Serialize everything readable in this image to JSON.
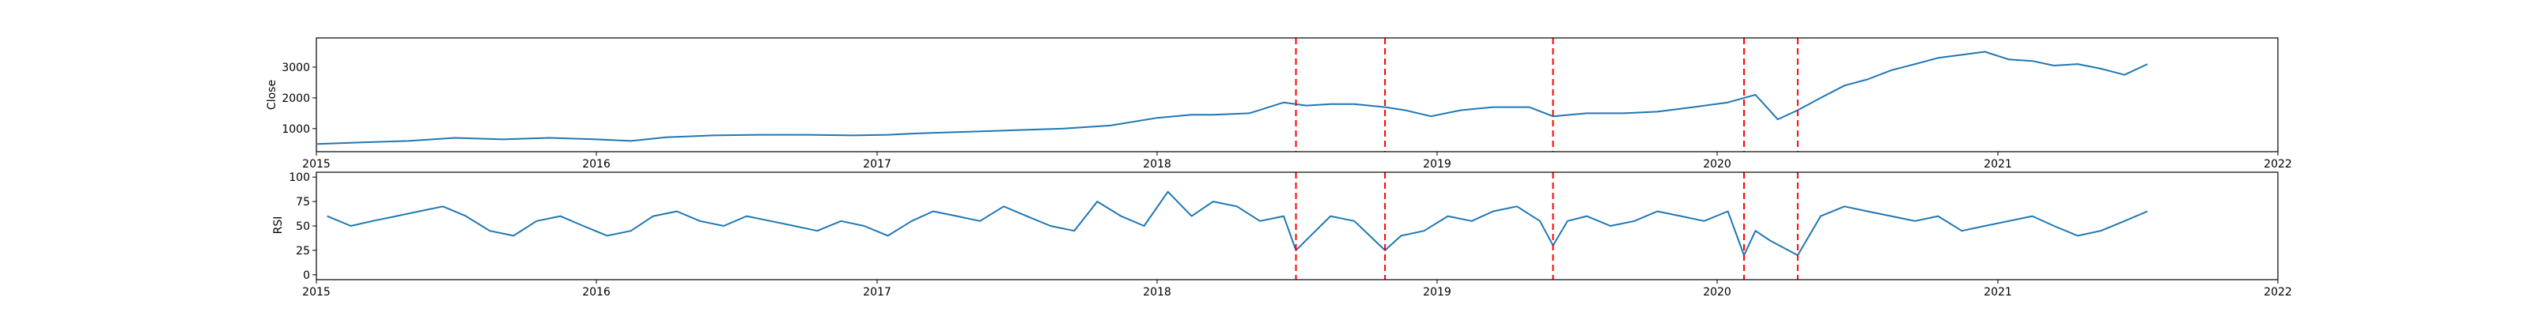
{
  "chart_data": [
    {
      "type": "line",
      "ylabel": "Close",
      "xlabel": "",
      "x_ticks": [
        "2015",
        "2016",
        "2017",
        "2018",
        "2019",
        "2020",
        "2021",
        "2022"
      ],
      "xlim": [
        "2015-01-01",
        "2022-01-01"
      ],
      "ylim": [
        250,
        3950
      ],
      "y_ticks": [
        1000,
        2000,
        3000
      ],
      "grid": false,
      "line_color": "#1f77b4",
      "event_line_color": "#ff0000",
      "event_dates": [
        "2018-07-01",
        "2018-10-25",
        "2019-06-01",
        "2020-02-05",
        "2020-04-15"
      ],
      "series": [
        {
          "x": [
            "2015-01-02",
            "2015-03-01",
            "2015-05-01",
            "2015-07-01",
            "2015-09-01",
            "2015-11-01",
            "2016-01-01",
            "2016-02-15",
            "2016-04-01",
            "2016-06-01",
            "2016-08-01",
            "2016-10-01",
            "2016-12-01",
            "2017-01-15",
            "2017-03-01",
            "2017-05-01",
            "2017-07-01",
            "2017-09-01",
            "2017-11-01",
            "2018-01-01",
            "2018-02-15",
            "2018-03-15",
            "2018-05-01",
            "2018-06-15",
            "2018-07-15",
            "2018-08-15",
            "2018-09-15",
            "2018-10-25",
            "2018-11-20",
            "2018-12-24",
            "2019-02-01",
            "2019-03-15",
            "2019-05-01",
            "2019-06-01",
            "2019-07-15",
            "2019-09-01",
            "2019-10-15",
            "2019-12-01",
            "2020-01-15",
            "2020-02-05",
            "2020-02-20",
            "2020-03-20",
            "2020-04-15",
            "2020-05-15",
            "2020-06-15",
            "2020-07-15",
            "2020-08-15",
            "2020-09-15",
            "2020-10-15",
            "2020-11-15",
            "2020-12-15",
            "2021-01-15",
            "2021-02-15",
            "2021-03-15",
            "2021-04-15",
            "2021-05-15",
            "2021-06-15",
            "2021-07-15"
          ],
          "y": [
            500,
            550,
            600,
            700,
            650,
            700,
            650,
            600,
            720,
            780,
            800,
            800,
            780,
            800,
            850,
            900,
            950,
            1000,
            1100,
            1350,
            1450,
            1450,
            1500,
            1850,
            1750,
            1800,
            1800,
            1700,
            1600,
            1400,
            1600,
            1700,
            1700,
            1400,
            1500,
            1500,
            1550,
            1700,
            1850,
            2000,
            2100,
            1300,
            1600,
            2000,
            2400,
            2600,
            2900,
            3100,
            3300,
            3400,
            3500,
            3250,
            3200,
            3050,
            3100,
            2950,
            2750,
            3100
          ]
        }
      ]
    },
    {
      "type": "line",
      "ylabel": "RSI",
      "xlabel": "",
      "x_ticks": [
        "2015",
        "2016",
        "2017",
        "2018",
        "2019",
        "2020",
        "2021",
        "2022"
      ],
      "xlim": [
        "2015-01-01",
        "2022-01-01"
      ],
      "ylim": [
        -5,
        105
      ],
      "y_ticks": [
        0,
        25,
        50,
        75,
        100
      ],
      "grid": false,
      "line_color": "#1f77b4",
      "event_line_color": "#ff0000",
      "event_dates": [
        "2018-07-01",
        "2018-10-25",
        "2019-06-01",
        "2020-02-05",
        "2020-04-15"
      ],
      "series": [
        {
          "x": [
            "2015-01-15",
            "2015-02-15",
            "2015-03-15",
            "2015-04-15",
            "2015-05-15",
            "2015-06-15",
            "2015-07-15",
            "2015-08-15",
            "2015-09-15",
            "2015-10-15",
            "2015-11-15",
            "2015-12-15",
            "2016-01-15",
            "2016-02-15",
            "2016-03-15",
            "2016-04-15",
            "2016-05-15",
            "2016-06-15",
            "2016-07-15",
            "2016-08-15",
            "2016-09-15",
            "2016-10-15",
            "2016-11-15",
            "2016-12-15",
            "2017-01-15",
            "2017-02-15",
            "2017-03-15",
            "2017-04-15",
            "2017-05-15",
            "2017-06-15",
            "2017-07-15",
            "2017-08-15",
            "2017-09-15",
            "2017-10-15",
            "2017-11-15",
            "2017-12-15",
            "2018-01-15",
            "2018-02-15",
            "2018-03-15",
            "2018-04-15",
            "2018-05-15",
            "2018-06-15",
            "2018-07-01",
            "2018-07-20",
            "2018-08-15",
            "2018-09-15",
            "2018-10-25",
            "2018-11-15",
            "2018-12-15",
            "2019-01-15",
            "2019-02-15",
            "2019-03-15",
            "2019-04-15",
            "2019-05-15",
            "2019-06-01",
            "2019-06-20",
            "2019-07-15",
            "2019-08-15",
            "2019-09-15",
            "2019-10-15",
            "2019-11-15",
            "2019-12-15",
            "2020-01-15",
            "2020-02-05",
            "2020-02-20",
            "2020-03-10",
            "2020-04-15",
            "2020-05-15",
            "2020-06-15",
            "2020-07-15",
            "2020-08-15",
            "2020-09-15",
            "2020-10-15",
            "2020-11-15",
            "2020-12-15",
            "2021-01-15",
            "2021-02-15",
            "2021-03-15",
            "2021-04-15",
            "2021-05-15",
            "2021-06-15",
            "2021-07-15"
          ],
          "y": [
            60,
            50,
            55,
            60,
            65,
            70,
            60,
            45,
            40,
            55,
            60,
            50,
            40,
            45,
            60,
            65,
            55,
            50,
            60,
            55,
            50,
            45,
            55,
            50,
            40,
            55,
            65,
            60,
            55,
            70,
            60,
            50,
            45,
            75,
            60,
            50,
            85,
            60,
            75,
            70,
            55,
            60,
            25,
            40,
            60,
            55,
            25,
            40,
            45,
            60,
            55,
            65,
            70,
            55,
            30,
            55,
            60,
            50,
            55,
            65,
            60,
            55,
            65,
            20,
            45,
            35,
            20,
            60,
            70,
            65,
            60,
            55,
            60,
            45,
            50,
            55,
            60,
            50,
            40,
            45,
            55,
            65
          ]
        }
      ]
    }
  ]
}
